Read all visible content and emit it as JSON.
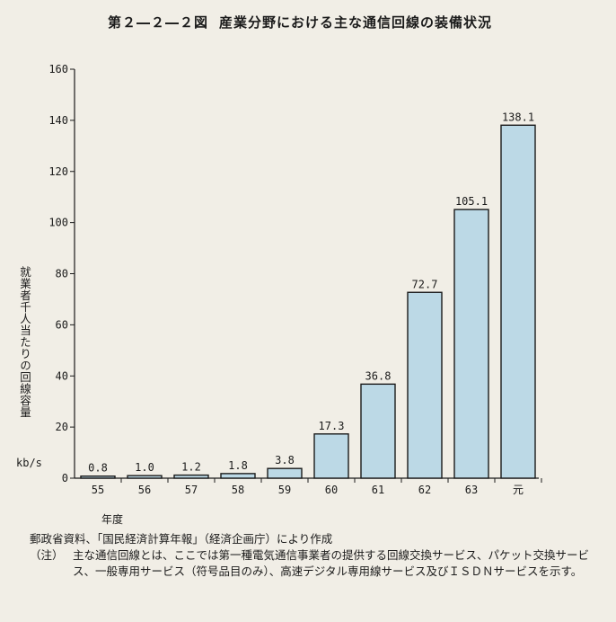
{
  "figure": {
    "number": "第２―２―２図",
    "title": "産業分野における主な通信回線の装備状況"
  },
  "chart_data": {
    "type": "bar",
    "categories": [
      "55",
      "56",
      "57",
      "58",
      "59",
      "60",
      "61",
      "62",
      "63",
      "元"
    ],
    "values": [
      0.8,
      1.0,
      1.2,
      1.8,
      3.8,
      17.3,
      36.8,
      72.7,
      105.1,
      138.1
    ],
    "value_labels": [
      "0.8",
      "1.0",
      "1.2",
      "1.8",
      "3.8",
      "17.3",
      "36.8",
      "72.7",
      "105.1",
      "138.1"
    ],
    "ylabel": "就業者千人当たりの回線容量",
    "unit": "kb/s",
    "xlabel": "年度",
    "ylim": [
      0,
      160
    ],
    "yticks": [
      0,
      20,
      40,
      60,
      80,
      100,
      120,
      140,
      160
    ],
    "grid": false,
    "colors": {
      "bar_fill": "#bcd9e6",
      "bar_stroke": "#1a1a1a"
    }
  },
  "source": "郵政省資料、「国民経済計算年報」（経済企画庁）により作成",
  "note": {
    "label": "（注）",
    "text": "主な通信回線とは、ここでは第一種電気通信事業者の提供する回線交換サービス、パケット交換サービス、一般専用サービス（符号品目のみ）、高速デジタル専用線サービス及びＩＳＤＮサービスを示す。"
  }
}
